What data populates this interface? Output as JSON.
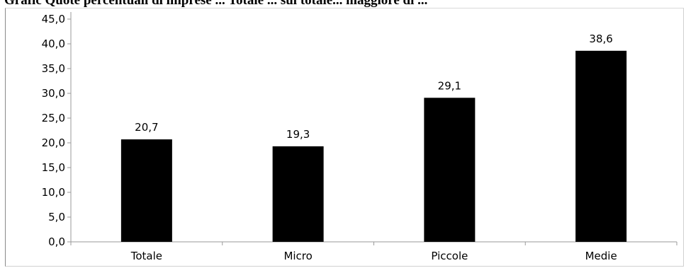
{
  "chart_data": {
    "type": "bar",
    "title": "Grafic Quote percentuali di imprese ... Totale ... sul totale... maggiore di ... ",
    "categories": [
      "Totale",
      "Micro",
      "Piccole",
      "Medie"
    ],
    "values": [
      20.7,
      19.3,
      29.1,
      38.6
    ],
    "value_labels": [
      "20,7",
      "19,3",
      "29,1",
      "38,6"
    ],
    "ylim": [
      0,
      45
    ],
    "yticks": [
      0,
      5,
      10,
      15,
      20,
      25,
      30,
      35,
      40,
      45
    ],
    "ytick_labels": [
      "0,0",
      "5,0",
      "10,0",
      "15,0",
      "20,0",
      "25,0",
      "30,0",
      "35,0",
      "40,0",
      "45,0"
    ],
    "xlabel": "",
    "ylabel": "",
    "grid": false,
    "legend": "none",
    "bar_color": "#000000"
  }
}
